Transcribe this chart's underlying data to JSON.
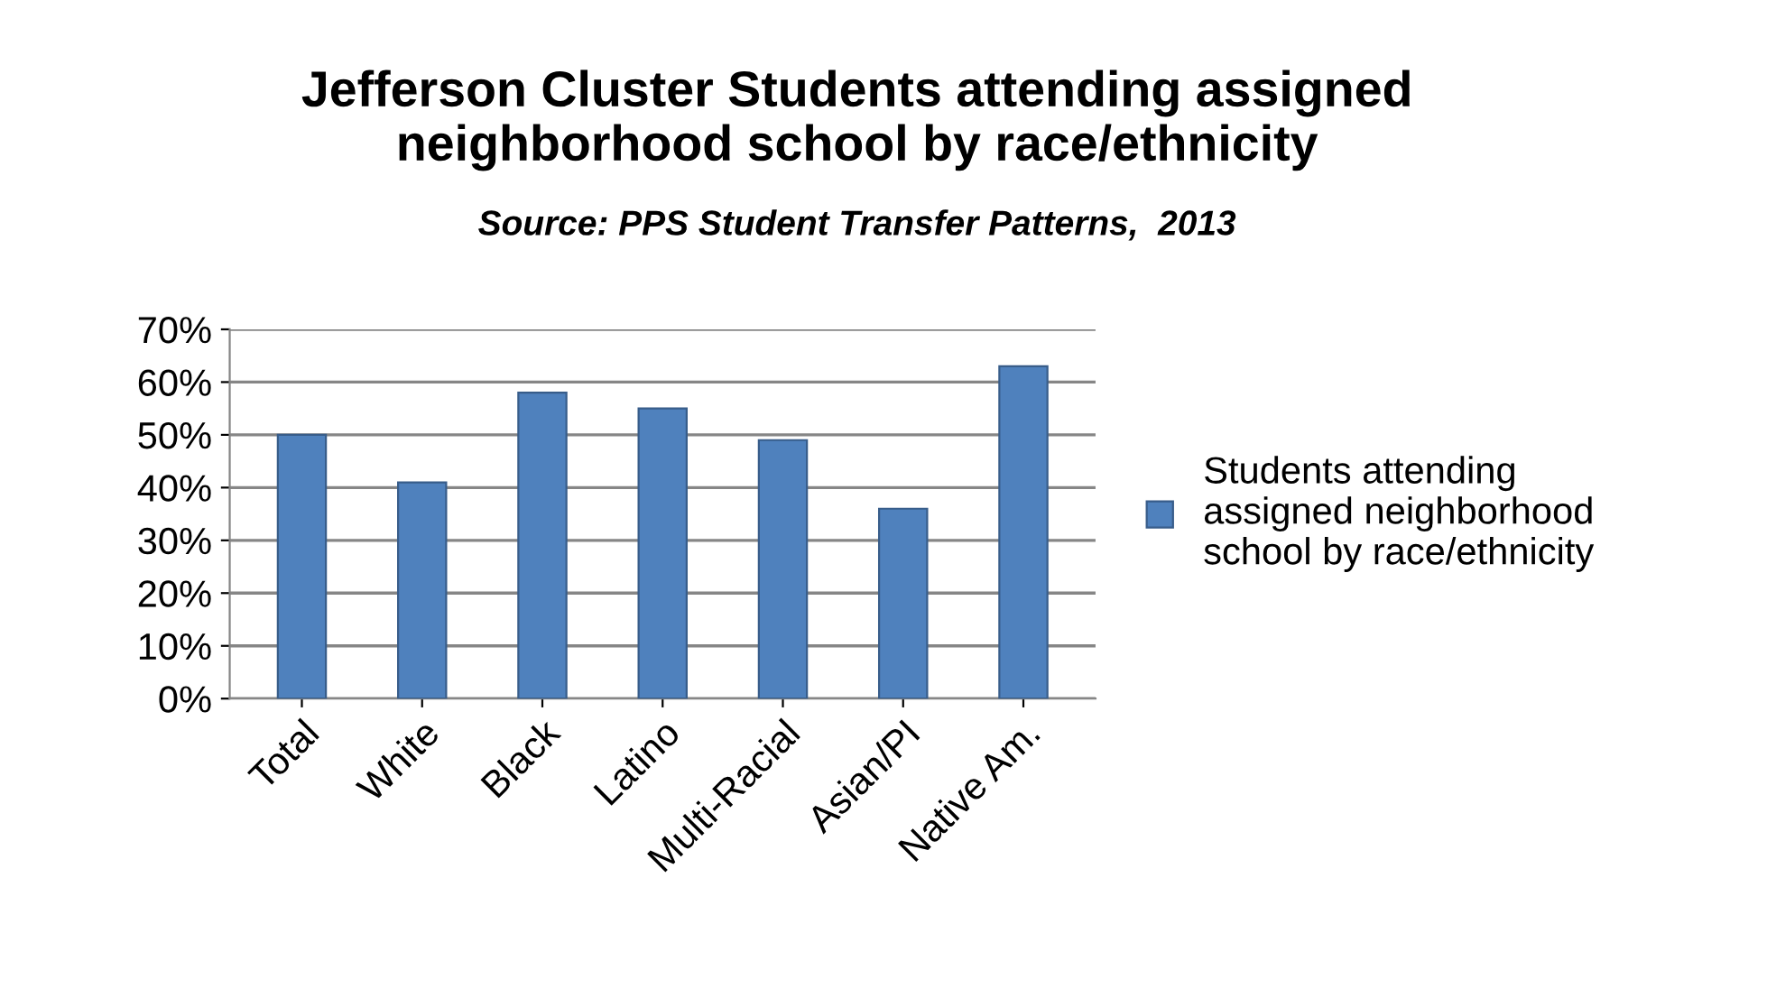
{
  "chart_data": {
    "type": "bar",
    "title": "Jefferson Cluster Students attending assigned\nneighborhood school by race/ethnicity",
    "subtitle": "Source: PPS Student Transfer Patterns,  2013",
    "categories": [
      "Total",
      "White",
      "Black",
      "Latino",
      "Multi-Racial",
      "Asian/PI",
      "Native Am."
    ],
    "series": [
      {
        "name": "Students attending\nassigned neighborhood\nschool by race/ethnicity",
        "color": "#4f81bd",
        "values": [
          50,
          41,
          58,
          55,
          49,
          36,
          63
        ]
      }
    ],
    "ylim": [
      0,
      70
    ],
    "yticks": [
      {
        "value": 0,
        "label": "0%"
      },
      {
        "value": 10,
        "label": "10%"
      },
      {
        "value": 20,
        "label": "20%"
      },
      {
        "value": 30,
        "label": "30%"
      },
      {
        "value": 40,
        "label": "40%"
      },
      {
        "value": 50,
        "label": "50%"
      },
      {
        "value": 60,
        "label": "60%"
      },
      {
        "value": 70,
        "label": "70%"
      }
    ],
    "grid": "y",
    "legend": "right"
  }
}
